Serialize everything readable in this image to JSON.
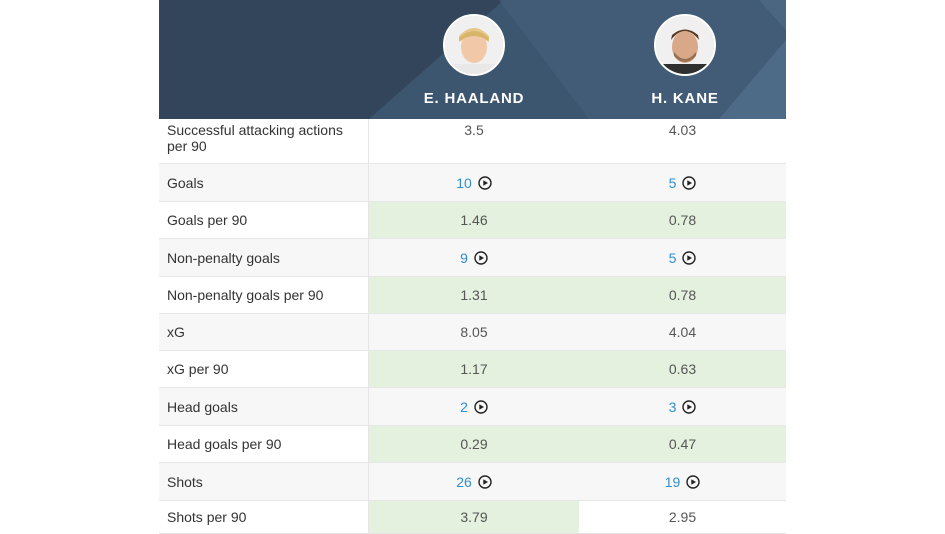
{
  "players": [
    {
      "name": "E. HAALAND",
      "avatar_icon": "player-photo-haaland"
    },
    {
      "name": "H. KANE",
      "avatar_icon": "player-photo-kane"
    }
  ],
  "colors": {
    "header_bg": "#33455a",
    "highlight": "#e3f1de",
    "link": "#2f8fd1"
  },
  "rows": [
    {
      "label": "Successful attacking actions per 90",
      "p1": "3.5",
      "p2": "4.03",
      "link": false,
      "highlight": [
        false,
        false
      ]
    },
    {
      "label": "Goals",
      "p1": "10",
      "p2": "5",
      "link": true,
      "highlight": [
        false,
        false
      ]
    },
    {
      "label": "Goals per 90",
      "p1": "1.46",
      "p2": "0.78",
      "link": false,
      "highlight": [
        true,
        true
      ]
    },
    {
      "label": "Non-penalty goals",
      "p1": "9",
      "p2": "5",
      "link": true,
      "highlight": [
        false,
        false
      ]
    },
    {
      "label": "Non-penalty goals per 90",
      "p1": "1.31",
      "p2": "0.78",
      "link": false,
      "highlight": [
        true,
        true
      ]
    },
    {
      "label": "xG",
      "p1": "8.05",
      "p2": "4.04",
      "link": false,
      "highlight": [
        false,
        false
      ]
    },
    {
      "label": "xG per 90",
      "p1": "1.17",
      "p2": "0.63",
      "link": false,
      "highlight": [
        true,
        true
      ]
    },
    {
      "label": "Head goals",
      "p1": "2",
      "p2": "3",
      "link": true,
      "highlight": [
        false,
        false
      ]
    },
    {
      "label": "Head goals per 90",
      "p1": "0.29",
      "p2": "0.47",
      "link": false,
      "highlight": [
        true,
        true
      ]
    },
    {
      "label": "Shots",
      "p1": "26",
      "p2": "19",
      "link": true,
      "highlight": [
        false,
        false
      ]
    },
    {
      "label": "Shots per 90",
      "p1": "3.79",
      "p2": "2.95",
      "link": false,
      "highlight": [
        true,
        false
      ]
    }
  ]
}
